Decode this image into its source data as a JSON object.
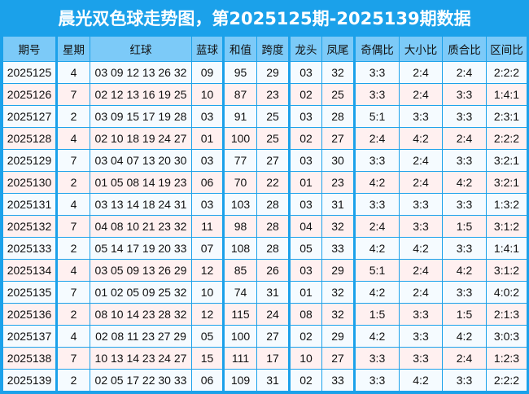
{
  "title": "晨光双色球走势图，第2025125期-2025139期数据",
  "colors": {
    "border": "#1ba1ea",
    "header_bg": "#7ccaf8",
    "row_odd": "#f5fbff",
    "row_even": "#fff0f0"
  },
  "headers": [
    "期号",
    "星期",
    "红球",
    "蓝球",
    "和值",
    "跨度",
    "龙头",
    "凤尾",
    "奇偶比",
    "大小比",
    "质合比",
    "区间比"
  ],
  "rows": [
    [
      "2025125",
      "4",
      "03 09 12 13 26 32",
      "09",
      "95",
      "29",
      "03",
      "32",
      "3:3",
      "2:4",
      "2:4",
      "2:2:2"
    ],
    [
      "2025126",
      "7",
      "02 12 13 16 19 25",
      "10",
      "87",
      "23",
      "02",
      "25",
      "3:3",
      "2:4",
      "3:3",
      "1:4:1"
    ],
    [
      "2025127",
      "2",
      "03 09 15 17 19 28",
      "03",
      "91",
      "25",
      "03",
      "28",
      "5:1",
      "3:3",
      "3:3",
      "2:3:1"
    ],
    [
      "2025128",
      "4",
      "02 10 18 19 24 27",
      "01",
      "100",
      "25",
      "02",
      "27",
      "2:4",
      "4:2",
      "2:4",
      "2:2:2"
    ],
    [
      "2025129",
      "7",
      "03 04 07 13 20 30",
      "03",
      "77",
      "27",
      "03",
      "30",
      "3:3",
      "2:4",
      "3:3",
      "3:2:1"
    ],
    [
      "2025130",
      "2",
      "01 05 08 14 19 23",
      "06",
      "70",
      "22",
      "01",
      "23",
      "4:2",
      "2:4",
      "4:2",
      "3:2:1"
    ],
    [
      "2025131",
      "4",
      "03 13 14 18 24 31",
      "03",
      "103",
      "28",
      "03",
      "31",
      "3:3",
      "3:3",
      "3:3",
      "1:3:2"
    ],
    [
      "2025132",
      "7",
      "04 08 10 21 23 32",
      "11",
      "98",
      "28",
      "04",
      "32",
      "2:4",
      "3:3",
      "1:5",
      "3:1:2"
    ],
    [
      "2025133",
      "2",
      "05 14 17 19 20 33",
      "07",
      "108",
      "28",
      "05",
      "33",
      "4:2",
      "4:2",
      "3:3",
      "1:4:1"
    ],
    [
      "2025134",
      "4",
      "03 05 09 13 26 29",
      "12",
      "85",
      "26",
      "03",
      "29",
      "5:1",
      "2:4",
      "4:2",
      "3:1:2"
    ],
    [
      "2025135",
      "7",
      "01 02 05 09 25 32",
      "10",
      "74",
      "31",
      "01",
      "32",
      "4:2",
      "2:4",
      "3:3",
      "4:0:2"
    ],
    [
      "2025136",
      "2",
      "08 10 14 23 28 32",
      "12",
      "115",
      "24",
      "08",
      "32",
      "1:5",
      "3:3",
      "1:5",
      "2:1:3"
    ],
    [
      "2025137",
      "4",
      "02 08 11 23 27 29",
      "05",
      "100",
      "27",
      "02",
      "29",
      "4:2",
      "3:3",
      "4:2",
      "3:0:3"
    ],
    [
      "2025138",
      "7",
      "10 13 14 23 24 27",
      "15",
      "111",
      "17",
      "10",
      "27",
      "3:3",
      "3:3",
      "2:4",
      "1:2:3"
    ],
    [
      "2025139",
      "2",
      "02 05 17 22 30 33",
      "06",
      "109",
      "31",
      "02",
      "33",
      "3:3",
      "4:2",
      "3:3",
      "2:2:2"
    ]
  ]
}
